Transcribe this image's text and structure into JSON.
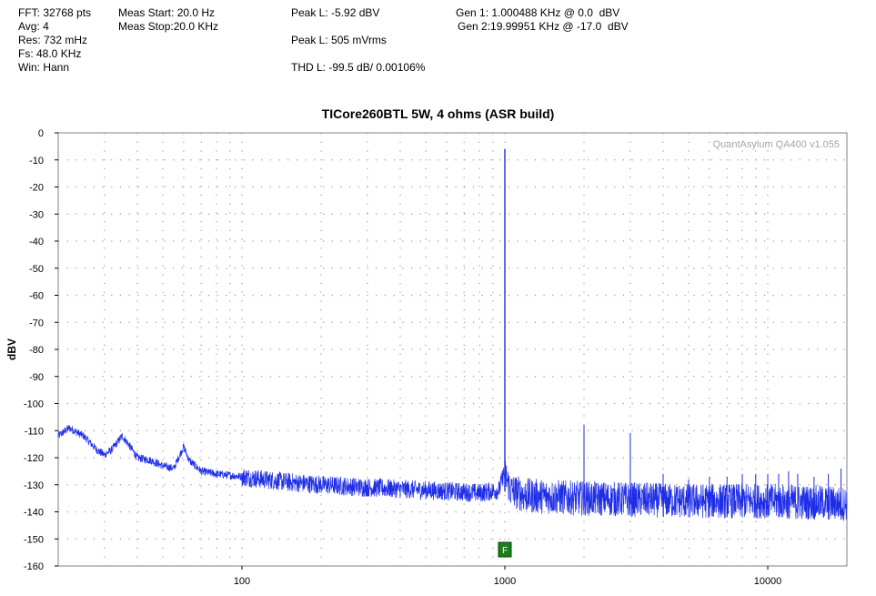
{
  "header": {
    "col1": [
      "FFT: 32768 pts",
      "Avg: 4",
      "Res: 732 mHz",
      "Fs: 48.0 KHz",
      "Win: Hann"
    ],
    "col2": [
      "Meas Start: 20.0 Hz",
      "Meas Stop:20.0 KHz"
    ],
    "peak_l": "Peak L: -5.92 dBV",
    "peak_l_rms": "Peak L: 505 mVrms",
    "thd_l": "THD L: -99.5 dB/ 0.00106%",
    "gen1": "Gen 1: 1.000488 KHz @ 0.0  dBV",
    "gen2": "Gen 2:19.99951 KHz @ -17.0  dBV"
  },
  "watermark": "QuantAsylum QA400 v1.055",
  "marker_label": "F",
  "chart_data": {
    "type": "line",
    "title": "TICore260BTL 5W, 4 ohms (ASR build)",
    "xlabel": "",
    "ylabel": "dBV",
    "xscale": "log",
    "xlim": [
      20,
      20000
    ],
    "ylim": [
      -160,
      0
    ],
    "xticks": [
      100,
      1000,
      10000
    ],
    "xtick_labels": [
      "100",
      "1000",
      "10000"
    ],
    "yticks": [
      0,
      -10,
      -20,
      -30,
      -40,
      -50,
      -60,
      -70,
      -80,
      -90,
      -100,
      -110,
      -120,
      -130,
      -140,
      -150,
      -160
    ],
    "grid": true,
    "line_color": "#1f2ee6",
    "marker_color": "#1a7f1a",
    "noise_floor": [
      [
        20,
        -112
      ],
      [
        22,
        -109
      ],
      [
        25,
        -112
      ],
      [
        28,
        -117
      ],
      [
        30,
        -119
      ],
      [
        32,
        -117
      ],
      [
        35,
        -112
      ],
      [
        37,
        -115
      ],
      [
        40,
        -120
      ],
      [
        45,
        -121
      ],
      [
        50,
        -123
      ],
      [
        55,
        -124
      ],
      [
        58,
        -119
      ],
      [
        60,
        -116
      ],
      [
        63,
        -121
      ],
      [
        70,
        -125
      ],
      [
        80,
        -126
      ],
      [
        100,
        -127
      ],
      [
        120,
        -128
      ],
      [
        150,
        -129
      ],
      [
        200,
        -130
      ],
      [
        300,
        -131
      ],
      [
        500,
        -132
      ],
      [
        800,
        -133
      ],
      [
        950,
        -132
      ],
      [
        990,
        -126
      ],
      [
        1010,
        -127
      ],
      [
        1050,
        -132
      ],
      [
        1200,
        -134
      ],
      [
        2000,
        -135
      ],
      [
        5000,
        -136
      ],
      [
        10000,
        -136
      ],
      [
        20000,
        -137
      ]
    ],
    "peaks": [
      {
        "freq": 1000,
        "level": -5.92
      },
      {
        "freq": 2000,
        "level": -108
      },
      {
        "freq": 3000,
        "level": -111
      },
      {
        "freq": 4000,
        "level": -126
      },
      {
        "freq": 5000,
        "level": -128
      },
      {
        "freq": 6000,
        "level": -127
      },
      {
        "freq": 7000,
        "level": -127
      },
      {
        "freq": 8000,
        "level": -126
      },
      {
        "freq": 9000,
        "level": -126
      },
      {
        "freq": 10000,
        "level": -126
      },
      {
        "freq": 11000,
        "level": -126
      },
      {
        "freq": 12000,
        "level": -125
      },
      {
        "freq": 13000,
        "level": -126
      },
      {
        "freq": 15000,
        "level": -127
      },
      {
        "freq": 17000,
        "level": -126
      },
      {
        "freq": 19000,
        "level": -124
      }
    ],
    "marker_freq": 1000
  }
}
